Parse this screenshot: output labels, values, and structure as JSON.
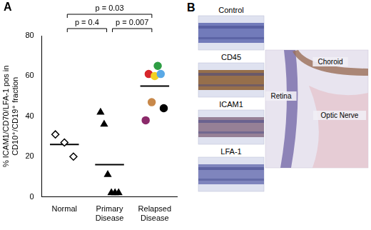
{
  "chart_data": {
    "type": "scatter",
    "panel": "A",
    "y_label": "% ICAM1/CD70/LFA-1 pos in CD10⁺/CD19⁺ fraction",
    "categories": [
      "Normal",
      "Primary Disease",
      "Relapsed Disease"
    ],
    "groups": [
      {
        "category": "Normal",
        "values": [
          31,
          27,
          20
        ],
        "mean": 26,
        "marker": "open-diamond",
        "color": "#000000"
      },
      {
        "category": "Primary Disease",
        "values": [
          42,
          36,
          11,
          2,
          2,
          2
        ],
        "mean": 16,
        "marker": "triangle",
        "color": "#000000"
      },
      {
        "category": "Relapsed Disease",
        "values": [
          38,
          61,
          47,
          60,
          65,
          61,
          44
        ],
        "mean": 55,
        "marker": "circle",
        "colors": [
          "#8b2a6a",
          "#d7262b",
          "#c8884a",
          "#f2d024",
          "#2e9e44",
          "#5aa9e6",
          "#000000"
        ]
      }
    ],
    "ylim": [
      0,
      80
    ],
    "yticks": [
      0,
      20,
      40,
      60,
      80
    ],
    "grid": false,
    "annotations": [
      {
        "text": "p = 0.4",
        "from": "Normal",
        "to": "Primary Disease"
      },
      {
        "text": "p = 0.007",
        "from": "Primary Disease",
        "to": "Relapsed Disease"
      },
      {
        "text": "p = 0.03",
        "from": "Normal",
        "to": "Relapsed Disease"
      }
    ]
  },
  "image_panel": {
    "panel": "B",
    "stains": [
      "Control",
      "CD45",
      "ICAM1",
      "LFA-1"
    ],
    "overview_labels": [
      "Choroid",
      "Retina",
      "Optic Nerve"
    ]
  }
}
